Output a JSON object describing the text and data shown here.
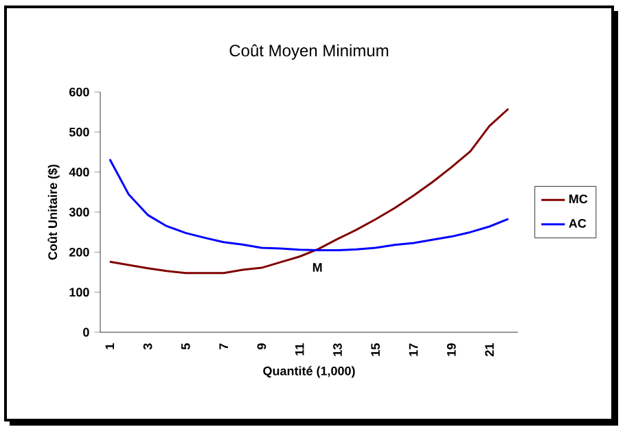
{
  "chart_data": {
    "type": "line",
    "title": "Coût Moyen Minimum",
    "xlabel": "Quantité (1,000)",
    "ylabel": "Coût Unitaire ($)",
    "categories": [
      "1",
      null,
      "3",
      null,
      "5",
      null,
      "7",
      null,
      "9",
      null,
      "11",
      null,
      "13",
      null,
      "15",
      null,
      "17",
      null,
      "19",
      null,
      "21",
      null
    ],
    "series": [
      {
        "name": "MC",
        "color": "#800000",
        "values": [
          176,
          168,
          160,
          153,
          148,
          148,
          148,
          156,
          161,
          175,
          189,
          208,
          233,
          256,
          282,
          310,
          341,
          375,
          412,
          452,
          515,
          558
        ]
      },
      {
        "name": "AC",
        "color": "#0000ff",
        "values": [
          432,
          344,
          293,
          265,
          248,
          236,
          225,
          219,
          211,
          209,
          206,
          205,
          205,
          207,
          211,
          218,
          223,
          231,
          239,
          250,
          264,
          283
        ]
      }
    ],
    "ylim": [
      0,
      600
    ],
    "yticks": [
      0,
      100,
      200,
      300,
      400,
      500,
      600
    ],
    "annotations": [
      "M"
    ],
    "legend": "right",
    "grid": false,
    "marker": "none",
    "line_style": "solid"
  }
}
